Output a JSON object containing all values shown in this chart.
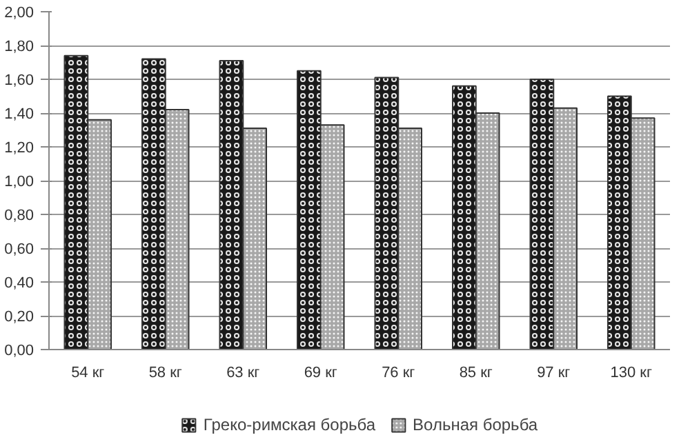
{
  "chart_data": {
    "type": "bar",
    "categories": [
      "54 кг",
      "58 кг",
      "63 кг",
      "69 кг",
      "76 кг",
      "85 кг",
      "97 кг",
      "130 кг"
    ],
    "series": [
      {
        "name": "Греко-римская борьба",
        "color": "#1a1a1a",
        "values": [
          1.74,
          1.72,
          1.71,
          1.65,
          1.61,
          1.56,
          1.6,
          1.5
        ]
      },
      {
        "name": "Вольная борьба",
        "color": "#a8a8a8",
        "values": [
          1.36,
          1.42,
          1.31,
          1.33,
          1.31,
          1.4,
          1.43,
          1.37
        ]
      }
    ],
    "ylim": [
      0,
      2
    ],
    "yticks": [
      {
        "value": 0,
        "label": "0,00"
      },
      {
        "value": 0.2,
        "label": "0,20"
      },
      {
        "value": 0.4,
        "label": "0,40"
      },
      {
        "value": 0.6,
        "label": "0,60"
      },
      {
        "value": 0.8,
        "label": "0,80"
      },
      {
        "value": 1.0,
        "label": "1,00"
      },
      {
        "value": 1.2,
        "label": "1,20"
      },
      {
        "value": 1.4,
        "label": "1,40"
      },
      {
        "value": 1.6,
        "label": "1,60"
      },
      {
        "value": 1.8,
        "label": "1,80"
      },
      {
        "value": 2.0,
        "label": "2,00"
      }
    ],
    "grid": "y",
    "legend": "bottom"
  }
}
